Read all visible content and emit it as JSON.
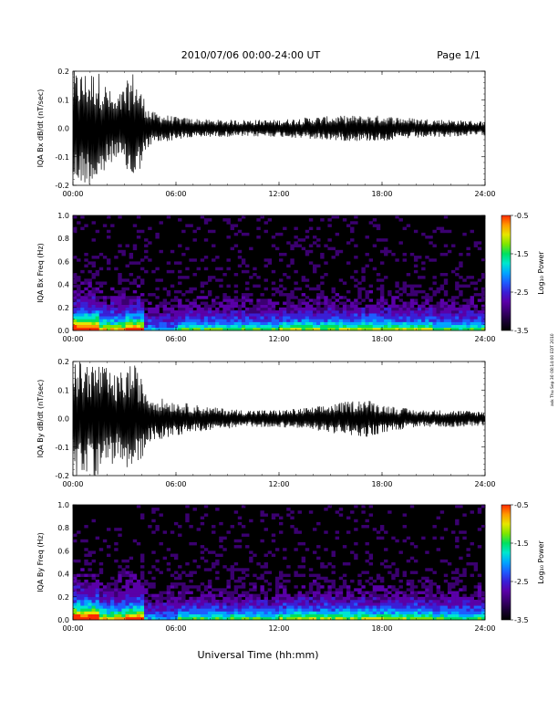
{
  "header": {
    "title": "2010/07/06  00:00-24:00 UT",
    "page": "Page 1/1"
  },
  "footer": {
    "xlabel": "Universal Time (hh:mm)",
    "timestamp": "ask Thu Sep 30 08:14:00 EDT 2010"
  },
  "colorscale": [
    "#000000",
    "#1a0033",
    "#3b0070",
    "#5a00a8",
    "#3a1fd6",
    "#1e5cff",
    "#00a6ff",
    "#00e6d0",
    "#00e060",
    "#7ee600",
    "#e6e600",
    "#ff9a00",
    "#ff2a00"
  ],
  "chart_data": [
    {
      "type": "line",
      "ylabel": "IQA Bx dB/dt (nT/sec)",
      "ylim": [
        -0.2,
        0.2
      ],
      "yticks": [
        "0.2",
        "0.1",
        "0.0",
        "-0.1",
        "-0.2"
      ],
      "xticks": [
        "00:00",
        "06:00",
        "12:00",
        "18:00",
        "24:00"
      ],
      "xlim": [
        "00:00",
        "24:00"
      ],
      "amplitude_envelope": {
        "x": [
          "00:00",
          "00:30",
          "01:30",
          "02:30",
          "03:30",
          "04:30",
          "06:00",
          "08:00",
          "10:00",
          "12:00",
          "14:00",
          "16:00",
          "18:00",
          "20:00",
          "22:00",
          "24:00"
        ],
        "y": [
          0.2,
          0.2,
          0.2,
          0.1,
          0.2,
          0.06,
          0.04,
          0.03,
          0.03,
          0.03,
          0.04,
          0.045,
          0.045,
          0.035,
          0.03,
          0.025
        ]
      }
    },
    {
      "type": "heatmap",
      "ylabel": "IQA Bx Freq (Hz)",
      "ylim": [
        0.0,
        1.0
      ],
      "yticks": [
        "1.0",
        "0.8",
        "0.6",
        "0.4",
        "0.2",
        "0.0"
      ],
      "xticks": [
        "00:00",
        "06:00",
        "12:00",
        "18:00",
        "24:00"
      ],
      "colorbar": {
        "label": "Log₁₀ Power",
        "ticks": [
          "-0.5",
          "-1.5",
          "-2.5",
          "-3.5"
        ],
        "range": [
          -3.5,
          -0.5
        ]
      }
    },
    {
      "type": "line",
      "ylabel": "IQA By dB/dt (nT/sec)",
      "ylim": [
        -0.2,
        0.2
      ],
      "yticks": [
        "0.2",
        "0.1",
        "0.0",
        "-0.1",
        "-0.2"
      ],
      "xticks": [
        "00:00",
        "06:00",
        "12:00",
        "18:00",
        "24:00"
      ],
      "xlim": [
        "00:00",
        "24:00"
      ],
      "amplitude_envelope": {
        "x": [
          "00:00",
          "00:30",
          "01:30",
          "02:30",
          "03:30",
          "04:30",
          "06:00",
          "08:00",
          "10:00",
          "12:00",
          "14:00",
          "16:00",
          "17:00",
          "18:00",
          "20:00",
          "22:00",
          "24:00"
        ],
        "y": [
          0.2,
          0.2,
          0.2,
          0.15,
          0.2,
          0.08,
          0.06,
          0.04,
          0.03,
          0.03,
          0.04,
          0.06,
          0.07,
          0.05,
          0.03,
          0.03,
          0.025
        ]
      }
    },
    {
      "type": "heatmap",
      "ylabel": "IQA By Freq (Hz)",
      "ylim": [
        0.0,
        1.0
      ],
      "yticks": [
        "1.0",
        "0.8",
        "0.6",
        "0.4",
        "0.2",
        "0.0"
      ],
      "xticks": [
        "00:00",
        "06:00",
        "12:00",
        "18:00",
        "24:00"
      ],
      "colorbar": {
        "label": "Log₁₀ Power",
        "ticks": [
          "-0.5",
          "-1.5",
          "-2.5",
          "-3.5"
        ],
        "range": [
          -3.5,
          -0.5
        ]
      }
    }
  ]
}
